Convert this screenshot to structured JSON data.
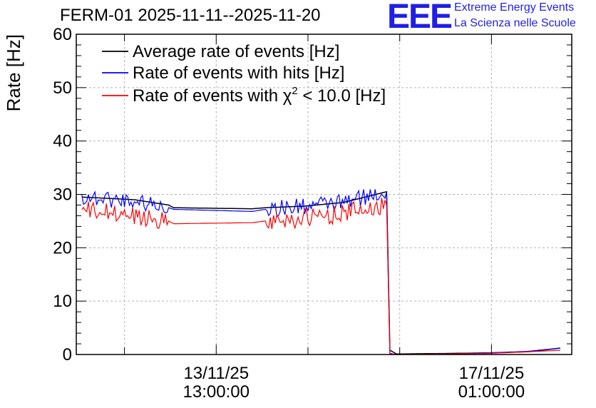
{
  "title": "FERM-01 2025-11-11--2025-11-20",
  "logo": {
    "letters": "EEE",
    "line1": "Extreme Energy Events",
    "line2": "La Scienza nelle Scuole"
  },
  "colors": {
    "average": "#000000",
    "hits": "#0000ff",
    "chi2": "#ff0000",
    "logo": "#1f1fe6",
    "grid": "#b4b4b4"
  },
  "chart_data": {
    "type": "line",
    "ylabel": "Rate [Hz]",
    "ylim": [
      0,
      60
    ],
    "yticks": [
      0,
      10,
      20,
      30,
      40,
      50,
      60
    ],
    "xlim": [
      "2025-11-11 18:18",
      "2025-11-18 01:30"
    ],
    "xticks": [
      {
        "date": "13/11/25",
        "time": "13:00:00",
        "x": "2025-11-13 13:00"
      },
      {
        "date": "17/11/25",
        "time": "01:00:00",
        "x": "2025-11-17 01:00"
      }
    ],
    "grid": true,
    "legend_position": "top-left",
    "legend": [
      {
        "label": "Average rate of events [Hz]",
        "series": "average"
      },
      {
        "label": "Rate of events with hits [Hz]",
        "series": "hits"
      },
      {
        "label_prefix": "Rate of events with ",
        "symbol": "χ",
        "superscript": "2",
        "label_suffix": " < 10.0 [Hz]",
        "series": "chi2"
      }
    ],
    "series": [
      {
        "key": "average",
        "x": [
          "2025-11-11 20:00",
          "2025-11-12 12:00",
          "2025-11-12 22:30",
          "2025-11-13 00:00",
          "2025-11-13 12:00",
          "2025-11-14 00:00",
          "2025-11-14 04:00",
          "2025-11-14 16:00",
          "2025-11-15 04:00",
          "2025-11-15 17:00",
          "2025-11-15 18:00",
          "2025-11-15 20:00",
          "2025-11-16 12:00",
          "2025-11-17 00:00",
          "2025-11-17 12:00",
          "2025-11-17 22:00"
        ],
        "y": [
          29.5,
          29.0,
          28.0,
          27.5,
          27.4,
          27.3,
          27.5,
          27.8,
          28.5,
          30.5,
          0.8,
          0.1,
          0.2,
          0.3,
          0.5,
          1.2
        ]
      },
      {
        "key": "hits",
        "x": [
          "2025-11-11 20:00",
          "2025-11-12 12:00",
          "2025-11-12 22:30",
          "2025-11-13 00:00",
          "2025-11-13 12:00",
          "2025-11-14 00:00",
          "2025-11-14 04:00",
          "2025-11-14 16:00",
          "2025-11-15 04:00",
          "2025-11-15 17:00",
          "2025-11-15 18:00",
          "2025-11-15 20:00",
          "2025-11-16 12:00",
          "2025-11-17 00:00",
          "2025-11-17 12:00",
          "2025-11-17 22:00"
        ],
        "y": [
          29.5,
          28.8,
          27.5,
          27.2,
          27.0,
          26.8,
          27.2,
          27.8,
          28.5,
          30.5,
          0.2,
          0.0,
          0.1,
          0.3,
          0.6,
          1.2
        ],
        "noise": 1.6
      },
      {
        "key": "chi2",
        "x": [
          "2025-11-11 20:00",
          "2025-11-12 12:00",
          "2025-11-12 22:30",
          "2025-11-13 00:00",
          "2025-11-13 12:00",
          "2025-11-14 00:00",
          "2025-11-14 04:00",
          "2025-11-14 16:00",
          "2025-11-15 04:00",
          "2025-11-15 17:00",
          "2025-11-15 18:00",
          "2025-11-15 20:00",
          "2025-11-16 12:00",
          "2025-11-17 00:00",
          "2025-11-17 12:00",
          "2025-11-17 22:00"
        ],
        "y": [
          27.0,
          26.0,
          25.0,
          24.5,
          24.6,
          24.7,
          25.0,
          25.5,
          26.5,
          28.0,
          0.1,
          0.0,
          0.1,
          0.2,
          0.5,
          0.8
        ],
        "noise": 1.8
      }
    ]
  }
}
